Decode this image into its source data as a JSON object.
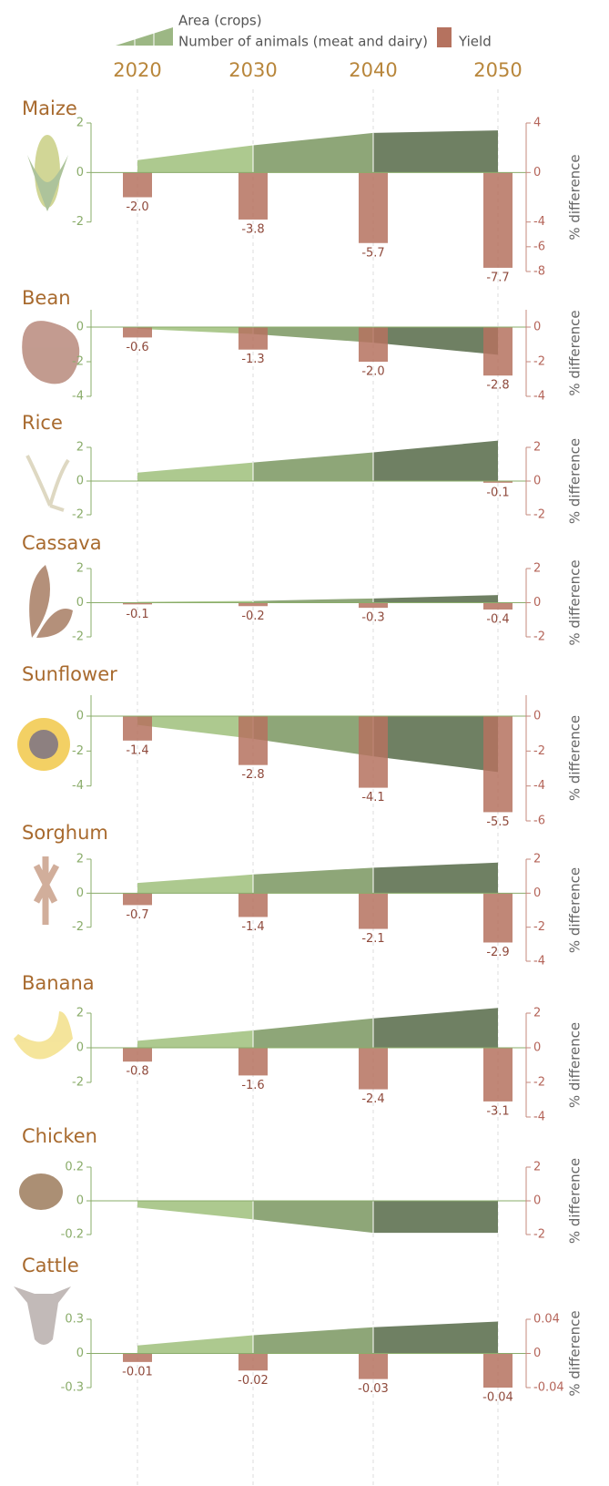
{
  "chart_data": [
    {
      "type": "combo",
      "title": "Maize",
      "categories": [
        "2020",
        "2030",
        "2040",
        "2050"
      ],
      "y2label": "% difference",
      "ylim": [
        -2,
        2
      ],
      "yticks": [
        -2,
        0,
        2
      ],
      "y2lim": [
        -8,
        4
      ],
      "y2ticks": [
        -8,
        -6,
        -4,
        0,
        4
      ],
      "series": [
        {
          "name": "Area (crops)",
          "type": "area",
          "color": [
            "#adc98f",
            "#8ea678",
            "#6f8063"
          ],
          "values": [
            0.5,
            1.1,
            1.6,
            1.7
          ]
        },
        {
          "name": "Yield",
          "type": "bar",
          "axis": "y2",
          "color": "#b5725f",
          "values": [
            -2.0,
            -3.8,
            -5.7,
            -7.7
          ],
          "value_labels": [
            "-2.0",
            "-3.8",
            "-5.7",
            "-7.7"
          ]
        }
      ]
    },
    {
      "type": "combo",
      "title": "Bean",
      "y2label": "% difference",
      "ylim": [
        -4,
        1
      ],
      "yticks": [
        -4,
        -2,
        0
      ],
      "y2lim": [
        -4,
        1
      ],
      "y2ticks": [
        -4,
        -2,
        0
      ],
      "series": [
        {
          "type": "area",
          "color": [
            "#adc98f",
            "#8ea678",
            "#6f8063"
          ],
          "values": [
            -0.1,
            -0.4,
            -0.9,
            -1.6
          ]
        },
        {
          "type": "bar",
          "axis": "y2",
          "color": "#b5725f",
          "values": [
            -0.6,
            -1.3,
            -2.0,
            -2.8
          ],
          "value_labels": [
            "-0.6",
            "-1.3",
            "-2.0",
            "-2.8"
          ]
        }
      ]
    },
    {
      "type": "combo",
      "title": "Rice",
      "y2label": "% difference",
      "ylim": [
        -2,
        2
      ],
      "yticks": [
        -2,
        0,
        2
      ],
      "y2lim": [
        -2,
        2
      ],
      "y2ticks": [
        -2,
        0,
        2
      ],
      "series": [
        {
          "type": "area",
          "color": [
            "#adc98f",
            "#8ea678",
            "#6f8063"
          ],
          "values": [
            0.5,
            1.1,
            1.7,
            2.4
          ]
        },
        {
          "type": "bar",
          "axis": "y2",
          "color": "#b5725f",
          "values": [
            null,
            null,
            null,
            -0.1
          ]
        }
      ]
    },
    {
      "type": "combo",
      "title": "Cassava",
      "y2label": "% difference",
      "ylim": [
        -2,
        2
      ],
      "yticks": [
        -2,
        0,
        2
      ],
      "y2lim": [
        -2,
        2
      ],
      "y2ticks": [
        -2,
        0,
        2
      ],
      "series": [
        {
          "type": "area",
          "color": [
            "#adc98f",
            "#8ea678",
            "#6f8063"
          ],
          "values": [
            0.05,
            0.1,
            0.25,
            0.45
          ]
        },
        {
          "type": "bar",
          "axis": "y2",
          "color": "#b5725f",
          "values": [
            -0.1,
            -0.2,
            -0.3,
            -0.4
          ]
        }
      ]
    },
    {
      "type": "combo",
      "title": "Sunflower",
      "y2label": "% difference",
      "ylim": [
        -4,
        1.2
      ],
      "yticks": [
        -4,
        -2,
        0
      ],
      "y2lim": [
        -6,
        1.2
      ],
      "y2ticks": [
        -6,
        -4,
        -2,
        0
      ],
      "series": [
        {
          "type": "area",
          "color": [
            "#adc98f",
            "#8ea678",
            "#6f8063"
          ],
          "values": [
            -0.5,
            -1.3,
            -2.3,
            -3.2
          ]
        },
        {
          "type": "bar",
          "axis": "y2",
          "color": "#b5725f",
          "values": [
            -1.4,
            -2.8,
            -4.1,
            -5.5
          ]
        }
      ]
    },
    {
      "type": "combo",
      "title": "Sorghum",
      "y2label": "% difference",
      "ylim": [
        -2,
        2
      ],
      "yticks": [
        -2,
        0,
        2
      ],
      "y2lim": [
        -4,
        2
      ],
      "y2ticks": [
        -4,
        -2,
        0,
        2
      ],
      "series": [
        {
          "type": "area",
          "color": [
            "#adc98f",
            "#8ea678",
            "#6f8063"
          ],
          "values": [
            0.6,
            1.1,
            1.5,
            1.8
          ]
        },
        {
          "type": "bar",
          "axis": "y2",
          "color": "#b5725f",
          "values": [
            -0.7,
            -1.4,
            -2.1,
            -2.9
          ]
        }
      ]
    },
    {
      "type": "combo",
      "title": "Banana",
      "y2label": "% difference",
      "ylim": [
        -2,
        2
      ],
      "yticks": [
        -2,
        0,
        2
      ],
      "y2lim": [
        -4,
        2
      ],
      "y2ticks": [
        -4,
        -2,
        0,
        2
      ],
      "series": [
        {
          "type": "area",
          "color": [
            "#adc98f",
            "#8ea678",
            "#6f8063"
          ],
          "values": [
            0.4,
            1.0,
            1.7,
            2.3
          ]
        },
        {
          "type": "bar",
          "axis": "y2",
          "color": "#b5725f",
          "values": [
            -0.8,
            -1.6,
            -2.4,
            -3.1
          ]
        }
      ]
    },
    {
      "type": "combo",
      "title": "Chicken",
      "y2label": "% difference",
      "ylim": [
        -0.2,
        0.2
      ],
      "yticks": [
        -0.2,
        0,
        0.2
      ],
      "y2lim": [
        -2,
        2
      ],
      "y2ticks": [
        -2,
        0,
        2
      ],
      "series": [
        {
          "name": "Number of animals (meat and dairy)",
          "type": "area",
          "color": [
            "#adc98f",
            "#8ea678",
            "#6f8063"
          ],
          "values": [
            -0.04,
            -0.11,
            -0.19,
            -0.19
          ]
        }
      ]
    },
    {
      "type": "combo",
      "title": "Cattle",
      "y2label": "% difference",
      "ylim": [
        -0.3,
        0.3
      ],
      "yticks": [
        -0.3,
        0,
        0.3
      ],
      "y2lim": [
        -0.04,
        0.04
      ],
      "y2ticks": [
        -0.04,
        0,
        0.04
      ],
      "series": [
        {
          "type": "area",
          "color": [
            "#adc98f",
            "#8ea678",
            "#6f8063"
          ],
          "values": [
            0.07,
            0.16,
            0.23,
            0.28
          ]
        },
        {
          "type": "bar",
          "axis": "y2",
          "color": "#b5725f",
          "values": [
            -0.01,
            -0.02,
            -0.03,
            -0.04
          ]
        }
      ]
    }
  ]
}
